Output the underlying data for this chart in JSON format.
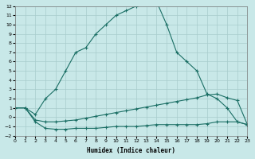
{
  "xlabel": "Humidex (Indice chaleur)",
  "xlim": [
    0,
    23
  ],
  "ylim": [
    -2,
    12
  ],
  "xticks": [
    0,
    1,
    2,
    3,
    4,
    5,
    6,
    7,
    8,
    9,
    10,
    11,
    12,
    13,
    14,
    15,
    16,
    17,
    18,
    19,
    20,
    21,
    22,
    23
  ],
  "yticks": [
    -2,
    -1,
    0,
    1,
    2,
    3,
    4,
    5,
    6,
    7,
    8,
    9,
    10,
    11,
    12
  ],
  "bg_color": "#c8e8e8",
  "grid_color": "#a8cccc",
  "line_color": "#1a6e64",
  "curve1_x": [
    1,
    2,
    3,
    4,
    5,
    6,
    7,
    8,
    9,
    10,
    11,
    12,
    13,
    14,
    15,
    16,
    17,
    18,
    19,
    20,
    21,
    22,
    23
  ],
  "curve1_y": [
    1.0,
    0.3,
    2.0,
    3.0,
    5.0,
    7.0,
    7.5,
    9.0,
    10.0,
    11.0,
    11.5,
    12.0,
    12.5,
    12.5,
    10.0,
    7.0,
    6.0,
    5.0,
    2.5,
    2.0,
    1.0,
    -0.5,
    -0.8
  ],
  "curve2_x": [
    0,
    1,
    2,
    3,
    4,
    5,
    6,
    7,
    8,
    9,
    10,
    11,
    12,
    13,
    14,
    15,
    16,
    17,
    18,
    19,
    20,
    21,
    22,
    23
  ],
  "curve2_y": [
    1.0,
    1.0,
    -0.5,
    -1.2,
    -1.3,
    -1.3,
    -1.2,
    -1.2,
    -1.2,
    -1.1,
    -1.0,
    -1.0,
    -1.0,
    -0.9,
    -0.8,
    -0.8,
    -0.8,
    -0.8,
    -0.8,
    -0.7,
    -0.5,
    -0.5,
    -0.5,
    -0.8
  ],
  "curve3_x": [
    0,
    1,
    2,
    3,
    4,
    5,
    6,
    7,
    8,
    9,
    10,
    11,
    12,
    13,
    14,
    15,
    16,
    17,
    18,
    19,
    20,
    21,
    22,
    23
  ],
  "curve3_y": [
    1.0,
    1.0,
    -0.3,
    -0.5,
    -0.5,
    -0.4,
    -0.3,
    -0.1,
    0.1,
    0.3,
    0.5,
    0.7,
    0.9,
    1.1,
    1.3,
    1.5,
    1.7,
    1.9,
    2.1,
    2.4,
    2.5,
    2.1,
    1.8,
    -0.8
  ]
}
